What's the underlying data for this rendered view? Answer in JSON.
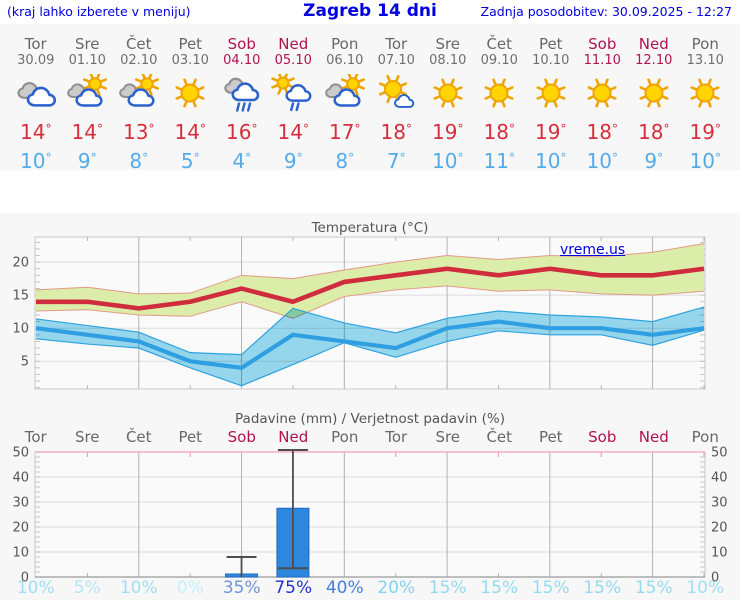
{
  "header": {
    "left_note": "(kraj lahko izberete v meniju)",
    "title": "Zagreb 14 dni",
    "updated": "Zadnja posodobitev: 30.09.2025 - 12:27"
  },
  "colors": {
    "link_blue": "#0000e0",
    "weekday_gray": "#676767",
    "weekend_red": "#b1134e",
    "high_temp_red": "#d62e3c",
    "low_temp_blue": "#54abe9",
    "bar_blue": "#2e87de",
    "max_line_red": "#cf2d3d",
    "min_line_blue": "#2f9fe2",
    "max_band_green": "#dcedaa",
    "min_band_cyan": "#99dbf2"
  },
  "forecast": {
    "degree_symbol": "°",
    "days": [
      {
        "name": "Tor",
        "date": "30.09",
        "weekend": false,
        "icon": "cloudy",
        "high": "14",
        "low": "10"
      },
      {
        "name": "Sre",
        "date": "01.10",
        "weekend": false,
        "icon": "partly-cloudy",
        "high": "14",
        "low": "9"
      },
      {
        "name": "Čet",
        "date": "02.10",
        "weekend": false,
        "icon": "partly-cloudy",
        "high": "13",
        "low": "8"
      },
      {
        "name": "Pet",
        "date": "03.10",
        "weekend": false,
        "icon": "sunny",
        "high": "14",
        "low": "5"
      },
      {
        "name": "Sob",
        "date": "04.10",
        "weekend": true,
        "icon": "rain",
        "high": "16",
        "low": "4"
      },
      {
        "name": "Ned",
        "date": "05.10",
        "weekend": true,
        "icon": "sun-rain",
        "high": "14",
        "low": "9"
      },
      {
        "name": "Pon",
        "date": "06.10",
        "weekend": false,
        "icon": "partly-cloudy",
        "high": "17",
        "low": "8"
      },
      {
        "name": "Tor",
        "date": "07.10",
        "weekend": false,
        "icon": "mostly-sunny",
        "high": "18",
        "low": "7"
      },
      {
        "name": "Sre",
        "date": "08.10",
        "weekend": false,
        "icon": "sunny",
        "high": "19",
        "low": "10"
      },
      {
        "name": "Čet",
        "date": "09.10",
        "weekend": false,
        "icon": "sunny",
        "high": "18",
        "low": "11"
      },
      {
        "name": "Pet",
        "date": "10.10",
        "weekend": false,
        "icon": "sunny",
        "high": "19",
        "low": "10"
      },
      {
        "name": "Sob",
        "date": "11.10",
        "weekend": true,
        "icon": "sunny",
        "high": "18",
        "low": "10"
      },
      {
        "name": "Ned",
        "date": "12.10",
        "weekend": true,
        "icon": "sunny",
        "high": "18",
        "low": "9"
      },
      {
        "name": "Pon",
        "date": "13.10",
        "weekend": false,
        "icon": "sunny",
        "high": "19",
        "low": "10"
      }
    ]
  },
  "chart_data": [
    {
      "type": "area",
      "title": "Temperatura (°C)",
      "watermark": "vreme.us",
      "categories": [
        "Tor",
        "Sre",
        "Čet",
        "Pet",
        "Sob",
        "Ned",
        "Pon",
        "Tor",
        "Sre",
        "Čet",
        "Pet",
        "Sob",
        "Ned",
        "Pon"
      ],
      "ylim": [
        0.8,
        23.8
      ],
      "yticks": [
        5,
        10,
        15,
        20
      ],
      "y_minor_step": 1,
      "grid": "vertical line every 2 days, horizontal line every 5 °C",
      "series": [
        {
          "name": "max_temp",
          "color": "#cf2d3d",
          "values": [
            14,
            14,
            13,
            14,
            16,
            14,
            17,
            18,
            19,
            18,
            19,
            18,
            18,
            19
          ]
        },
        {
          "name": "max_band_upper",
          "color": "#dcedaa",
          "values": [
            15.8,
            16.2,
            15.2,
            15.3,
            18,
            17.5,
            18.8,
            20,
            21,
            20.4,
            21,
            20.8,
            21.5,
            22.8
          ]
        },
        {
          "name": "max_band_lower",
          "color": "#dcedaa",
          "values": [
            12.6,
            12.8,
            12,
            11.8,
            14,
            11.5,
            14.8,
            15.8,
            16.4,
            15.6,
            15.8,
            15.2,
            15,
            15.6
          ]
        },
        {
          "name": "min_temp",
          "color": "#2f9fe2",
          "values": [
            10,
            9,
            8,
            5,
            4,
            9,
            8,
            7,
            10,
            11,
            10,
            10,
            9,
            10
          ]
        },
        {
          "name": "min_band_upper",
          "color": "#99dbf2",
          "values": [
            11.4,
            10.4,
            9.4,
            6.3,
            6,
            13,
            10.8,
            9.3,
            11.5,
            12.6,
            12,
            11.7,
            11,
            13.2
          ]
        },
        {
          "name": "min_band_lower",
          "color": "#99dbf2",
          "values": [
            8.4,
            7.6,
            7,
            4,
            1.3,
            4.5,
            7.8,
            5.6,
            8,
            9.6,
            9,
            9,
            7.4,
            9.7
          ]
        }
      ]
    },
    {
      "type": "bar",
      "title": "Padavine (mm) / Verjetnost padavin (%)",
      "categories": [
        "Tor",
        "Sre",
        "Čet",
        "Pet",
        "Sob",
        "Ned",
        "Pon",
        "Tor",
        "Sre",
        "Čet",
        "Pet",
        "Sob",
        "Ned",
        "Pon"
      ],
      "weekend": [
        false,
        false,
        false,
        false,
        true,
        true,
        false,
        false,
        false,
        false,
        false,
        true,
        true,
        false
      ],
      "values": [
        0,
        0,
        0,
        0,
        1.2,
        27.5,
        0,
        0,
        0,
        0,
        0,
        0,
        0,
        0
      ],
      "error_bars": [
        null,
        null,
        null,
        null,
        {
          "low": 0,
          "high": 8,
          "cap_low": false,
          "cap_high": true
        },
        {
          "low": 3.5,
          "high": 52,
          "cap_low": true,
          "cap_high": true
        },
        null,
        null,
        null,
        null,
        null,
        null,
        null,
        null
      ],
      "ylim": [
        0,
        52
      ],
      "yticks": [
        0,
        10,
        20,
        30,
        40,
        50
      ],
      "y_minor_step": 2,
      "bar_color": "#2e87de",
      "probabilities": [
        {
          "label": "10%",
          "color": "#9fdff3"
        },
        {
          "label": "5%",
          "color": "#b3e6f6"
        },
        {
          "label": "10%",
          "color": "#9fdff3"
        },
        {
          "label": "0%",
          "color": "#c8eef9"
        },
        {
          "label": "35%",
          "color": "#6f94d9"
        },
        {
          "label": "75%",
          "color": "#2333cb"
        },
        {
          "label": "40%",
          "color": "#477edd"
        },
        {
          "label": "20%",
          "color": "#7fd3ee"
        },
        {
          "label": "15%",
          "color": "#93daf1"
        },
        {
          "label": "15%",
          "color": "#93daf1"
        },
        {
          "label": "15%",
          "color": "#93daf1"
        },
        {
          "label": "15%",
          "color": "#93daf1"
        },
        {
          "label": "15%",
          "color": "#93daf1"
        },
        {
          "label": "10%",
          "color": "#9fdff3"
        }
      ]
    }
  ]
}
